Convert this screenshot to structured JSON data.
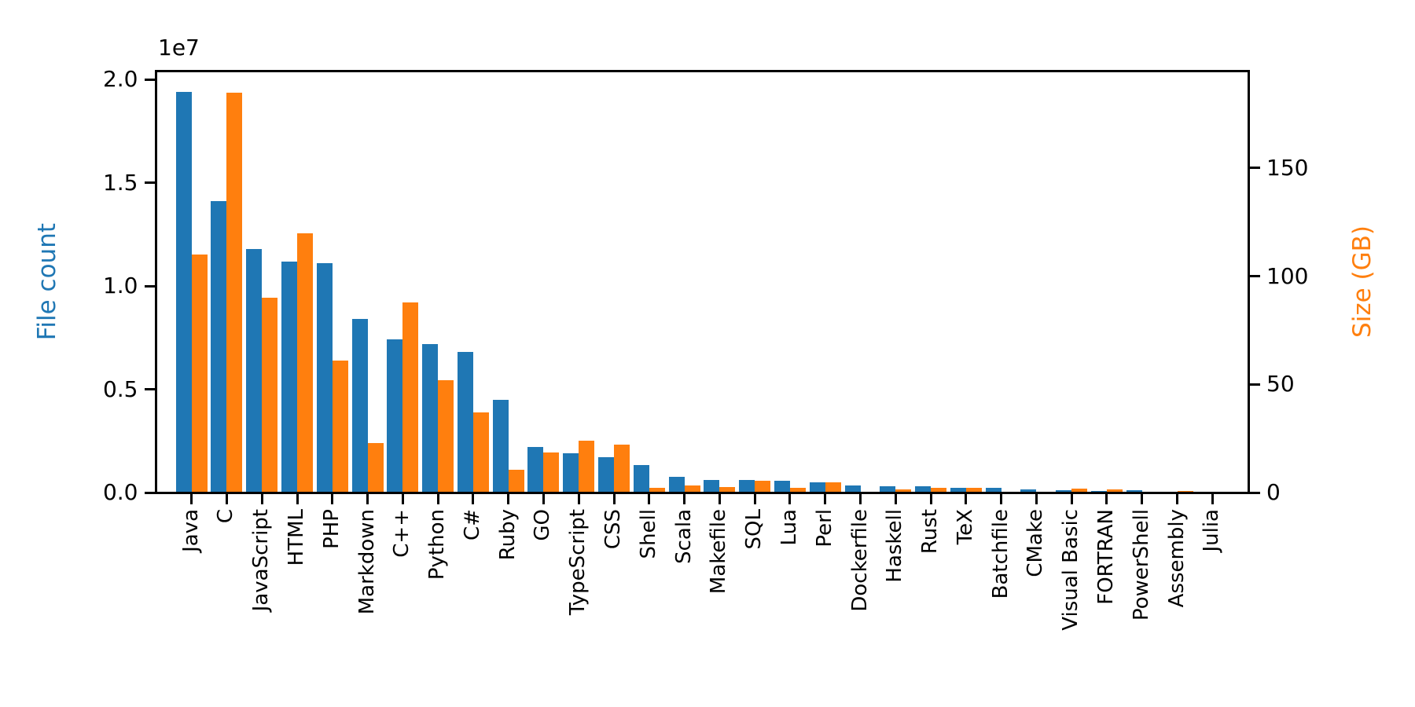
{
  "figure": {
    "background": "#ffffff",
    "blue": "#1f77b4",
    "orange": "#ff7f0e"
  },
  "chart_data": {
    "type": "bar",
    "title": "",
    "grid": false,
    "legend": "none",
    "categories": [
      "Java",
      "C",
      "JavaScript",
      "HTML",
      "PHP",
      "Markdown",
      "C++",
      "Python",
      "C#",
      "Ruby",
      "GO",
      "TypeScript",
      "CSS",
      "Shell",
      "Scala",
      "Makefile",
      "SQL",
      "Lua",
      "Perl",
      "Dockerfile",
      "Haskell",
      "Rust",
      "TeX",
      "Batchfile",
      "CMake",
      "Visual Basic",
      "FORTRAN",
      "PowerShell",
      "Assembly",
      "Julia"
    ],
    "series": [
      {
        "name": "File count",
        "axis": "left",
        "color": "#1f77b4",
        "unit": "files (millions)",
        "values": [
          19.4,
          14.1,
          11.8,
          11.2,
          11.1,
          8.4,
          7.4,
          7.2,
          6.8,
          4.5,
          2.2,
          1.9,
          1.7,
          1.34,
          0.75,
          0.59,
          0.61,
          0.56,
          0.48,
          0.33,
          0.29,
          0.32,
          0.23,
          0.22,
          0.14,
          0.11,
          0.09,
          0.11,
          0.04,
          0.03
        ]
      },
      {
        "name": "Size (GB)",
        "axis": "right",
        "color": "#ff7f0e",
        "unit": "GB",
        "values": [
          110,
          185,
          90,
          120,
          61,
          23,
          88,
          52,
          37,
          10.5,
          18.5,
          24,
          22,
          2.3,
          3.2,
          2.6,
          5.4,
          2.0,
          4.9,
          0.5,
          1.6,
          2.2,
          2.1,
          0.3,
          0.25,
          1.7,
          1.5,
          0.25,
          0.6,
          0.2
        ]
      }
    ],
    "left_axis": {
      "label": "File count",
      "color": "#1f77b4",
      "offset_text": "1e7",
      "tick_labels": [
        "0.0",
        "0.5",
        "1.0",
        "1.5",
        "2.0"
      ],
      "tick_values_millions": [
        0,
        5,
        10,
        15,
        20
      ],
      "max_millions": 20.43
    },
    "right_axis": {
      "label": "Size (GB)",
      "color": "#ff7f0e",
      "tick_labels": [
        "0",
        "50",
        "100",
        "150"
      ],
      "tick_values_gb": [
        0,
        50,
        100,
        150
      ],
      "max_gb": 195
    }
  }
}
